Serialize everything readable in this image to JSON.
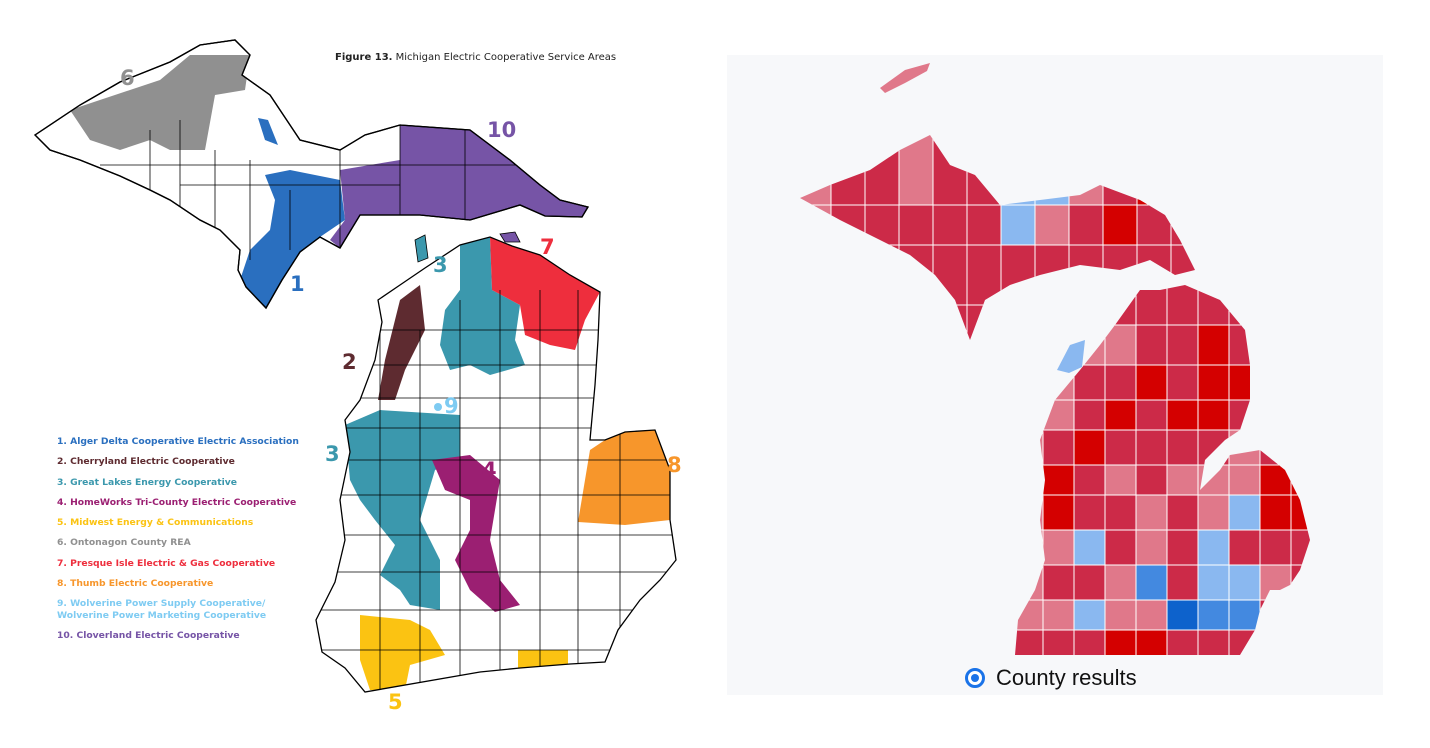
{
  "left_map": {
    "title_bold": "Figure 13.",
    "title_rest": " Michigan Electric Cooperative Service Areas",
    "legend": [
      {
        "label": "1. Alger Delta Cooperative Electric Association",
        "color": "#2a6fbf"
      },
      {
        "label": "2. Cherryland Electric Cooperative",
        "color": "#5e2b30"
      },
      {
        "label": "3. Great Lakes Energy Cooperative",
        "color": "#3b98ad"
      },
      {
        "label": "4. HomeWorks Tri-County Electric Cooperative",
        "color": "#9b1f72"
      },
      {
        "label": "5. Midwest Energy & Communications",
        "color": "#fbc312"
      },
      {
        "label": "6. Ontonagon County REA",
        "color": "#909090"
      },
      {
        "label": "7. Presque Isle Electric & Gas Cooperative",
        "color": "#ee2e3d"
      },
      {
        "label": "8. Thumb Electric Cooperative",
        "color": "#f7962b"
      },
      {
        "label": "9. Wolverine Power Supply Cooperative/ Wolverine Power Marketing Cooperative",
        "line1": "9. Wolverine Power Supply Cooperative/",
        "line2": "Wolverine Power Marketing Cooperative",
        "color": "#7ecbf2"
      },
      {
        "label": "10. Cloverland Electric Cooperative",
        "color": "#7654a6"
      }
    ],
    "map_numbers": [
      "1",
      "2",
      "3",
      "3",
      "4",
      "5",
      "6",
      "7",
      "8",
      "9",
      "10"
    ]
  },
  "right_map": {
    "radio_label": "County results",
    "radio_selected": true,
    "colors": {
      "strong_red": "#d40000",
      "red": "#cc2a48",
      "light_red": "#e0788a",
      "light_blue": "#8ab8f0",
      "blue": "#4389e0",
      "strong_blue": "#0d62cc"
    }
  }
}
